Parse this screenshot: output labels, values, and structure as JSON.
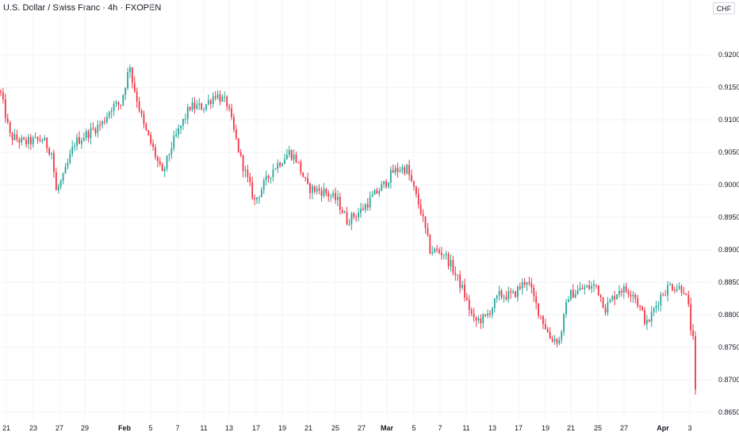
{
  "header": {
    "title": "U.S. Dollar / Swiss Franc · 4h · FXOPEN",
    "currency": "CHF"
  },
  "chart_data": {
    "type": "candlestick",
    "title": "U.S. Dollar / Swiss Franc · 4h · FXOPEN",
    "ylim": [
      0.8638,
      0.926
    ],
    "y_ticks": [
      0.92,
      0.915,
      0.91,
      0.905,
      0.9,
      0.895,
      0.89,
      0.885,
      0.88,
      0.875,
      0.87,
      0.865
    ],
    "x_ticks": [
      "21",
      "23",
      "27",
      "29",
      "Feb",
      "5",
      "7",
      "11",
      "13",
      "17",
      "19",
      "21",
      "25",
      "27",
      "Mar",
      "5",
      "7",
      "11",
      "13",
      "17",
      "19",
      "21",
      "25",
      "27",
      "Apr",
      "3"
    ],
    "x_ticks_bold": [
      "Feb",
      "Mar",
      "Apr"
    ],
    "colors": {
      "up": "#26a69a",
      "down": "#f23645",
      "grid": "#f0f3fa",
      "text": "#131722"
    },
    "grid": true,
    "candle_count": 262,
    "waypoints": [
      [
        0,
        0.914
      ],
      [
        4,
        0.9075
      ],
      [
        10,
        0.9065
      ],
      [
        18,
        0.907
      ],
      [
        22,
        0.905
      ],
      [
        24,
        0.899
      ],
      [
        27,
        0.901
      ],
      [
        32,
        0.9065
      ],
      [
        40,
        0.9085
      ],
      [
        44,
        0.9095
      ],
      [
        48,
        0.912
      ],
      [
        52,
        0.9125
      ],
      [
        56,
        0.9185
      ],
      [
        57,
        0.916
      ],
      [
        62,
        0.909
      ],
      [
        66,
        0.9055
      ],
      [
        70,
        0.9015
      ],
      [
        74,
        0.906
      ],
      [
        82,
        0.912
      ],
      [
        88,
        0.912
      ],
      [
        93,
        0.914
      ],
      [
        98,
        0.9125
      ],
      [
        104,
        0.904
      ],
      [
        110,
        0.8975
      ],
      [
        118,
        0.9025
      ],
      [
        125,
        0.905
      ],
      [
        128,
        0.904
      ],
      [
        133,
        0.8995
      ],
      [
        140,
        0.899
      ],
      [
        146,
        0.8975
      ],
      [
        150,
        0.8945
      ],
      [
        156,
        0.896
      ],
      [
        162,
        0.8985
      ],
      [
        166,
        0.9
      ],
      [
        170,
        0.902
      ],
      [
        173,
        0.9025
      ],
      [
        176,
        0.9025
      ],
      [
        182,
        0.896
      ],
      [
        186,
        0.89
      ],
      [
        192,
        0.8895
      ],
      [
        196,
        0.887
      ],
      [
        200,
        0.884
      ],
      [
        205,
        0.879
      ],
      [
        210,
        0.8795
      ],
      [
        216,
        0.883
      ],
      [
        222,
        0.883
      ],
      [
        228,
        0.8855
      ],
      [
        232,
        0.8815
      ],
      [
        238,
        0.8765
      ],
      [
        242,
        0.876
      ],
      [
        246,
        0.883
      ],
      [
        252,
        0.884
      ],
      [
        258,
        0.8845
      ],
      [
        262,
        0.881
      ],
      [
        268,
        0.884
      ],
      [
        274,
        0.8835
      ],
      [
        280,
        0.8785
      ],
      [
        286,
        0.883
      ],
      [
        290,
        0.8845
      ],
      [
        296,
        0.884
      ],
      [
        298,
        0.881
      ],
      [
        299,
        0.878
      ],
      [
        300,
        0.876
      ],
      [
        301,
        0.8685
      ]
    ]
  }
}
